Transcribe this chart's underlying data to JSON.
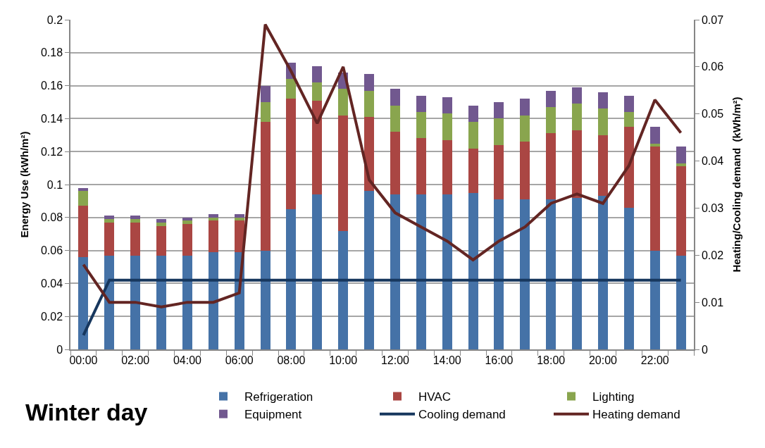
{
  "chart_data": {
    "type": "bar",
    "title": "Winter day",
    "ylabel": "Energy Use (kWh/m²)",
    "y2label": "Heating/Cooling demand  (kWh/m²)",
    "categories": [
      "00:00",
      null,
      "02:00",
      null,
      "04:00",
      null,
      "06:00",
      null,
      "08:00",
      null,
      "10:00",
      null,
      "12:00",
      null,
      "14:00",
      null,
      "16:00",
      null,
      "18:00",
      null,
      "20:00",
      null,
      "22:00",
      null
    ],
    "stacked": true,
    "series": [
      {
        "name": "Refrigeration",
        "color": "#4572a7",
        "values": [
          0.056,
          0.057,
          0.057,
          0.057,
          0.057,
          0.059,
          0.059,
          0.06,
          0.085,
          0.094,
          0.072,
          0.096,
          0.094,
          0.094,
          0.094,
          0.095,
          0.091,
          0.091,
          0.091,
          0.092,
          0.093,
          0.086,
          0.06,
          0.057
        ]
      },
      {
        "name": "HVAC",
        "color": "#aa4643",
        "values": [
          0.031,
          0.02,
          0.02,
          0.018,
          0.019,
          0.019,
          0.019,
          0.078,
          0.067,
          0.057,
          0.07,
          0.045,
          0.038,
          0.034,
          0.033,
          0.027,
          0.033,
          0.035,
          0.04,
          0.041,
          0.037,
          0.049,
          0.063,
          0.054
        ]
      },
      {
        "name": "Lighting",
        "color": "#89a54e",
        "values": [
          0.009,
          0.002,
          0.002,
          0.002,
          0.002,
          0.002,
          0.002,
          0.012,
          0.012,
          0.011,
          0.016,
          0.016,
          0.016,
          0.016,
          0.016,
          0.016,
          0.016,
          0.016,
          0.016,
          0.016,
          0.016,
          0.009,
          0.002,
          0.002
        ]
      },
      {
        "name": "Equipment",
        "color": "#71588f",
        "values": [
          0.002,
          0.002,
          0.002,
          0.002,
          0.002,
          0.002,
          0.002,
          0.01,
          0.01,
          0.01,
          0.01,
          0.01,
          0.01,
          0.01,
          0.01,
          0.01,
          0.01,
          0.01,
          0.01,
          0.01,
          0.01,
          0.01,
          0.01,
          0.01
        ]
      },
      {
        "name": "Cooling demand",
        "type": "line",
        "axis": "y2",
        "color": "#17375e",
        "values": [
          0.003,
          0.0147,
          0.0147,
          0.0147,
          0.0147,
          0.0147,
          0.0147,
          0.0147,
          0.0147,
          0.0147,
          0.0147,
          0.0147,
          0.0147,
          0.0147,
          0.0147,
          0.0147,
          0.0147,
          0.0147,
          0.0147,
          0.0147,
          0.0147,
          0.0147,
          0.0147,
          0.0147
        ]
      },
      {
        "name": "Heating demand",
        "type": "line",
        "axis": "y2",
        "color": "#632523",
        "values": [
          0.018,
          0.01,
          0.01,
          0.009,
          0.01,
          0.01,
          0.012,
          0.069,
          0.059,
          0.048,
          0.06,
          0.036,
          0.029,
          0.026,
          0.023,
          0.019,
          0.023,
          0.026,
          0.031,
          0.033,
          0.031,
          0.039,
          0.053,
          0.046
        ]
      }
    ],
    "ylim": [
      0,
      0.2
    ],
    "yticks": [
      0,
      0.02,
      0.04,
      0.06,
      0.08,
      0.1,
      0.12,
      0.14,
      0.16,
      0.18,
      0.2
    ],
    "y2lim": [
      0,
      0.07
    ],
    "y2ticks": [
      0,
      0.01,
      0.02,
      0.03,
      0.04,
      0.05,
      0.06,
      0.07
    ],
    "grid": "y",
    "legend": "bottom"
  }
}
